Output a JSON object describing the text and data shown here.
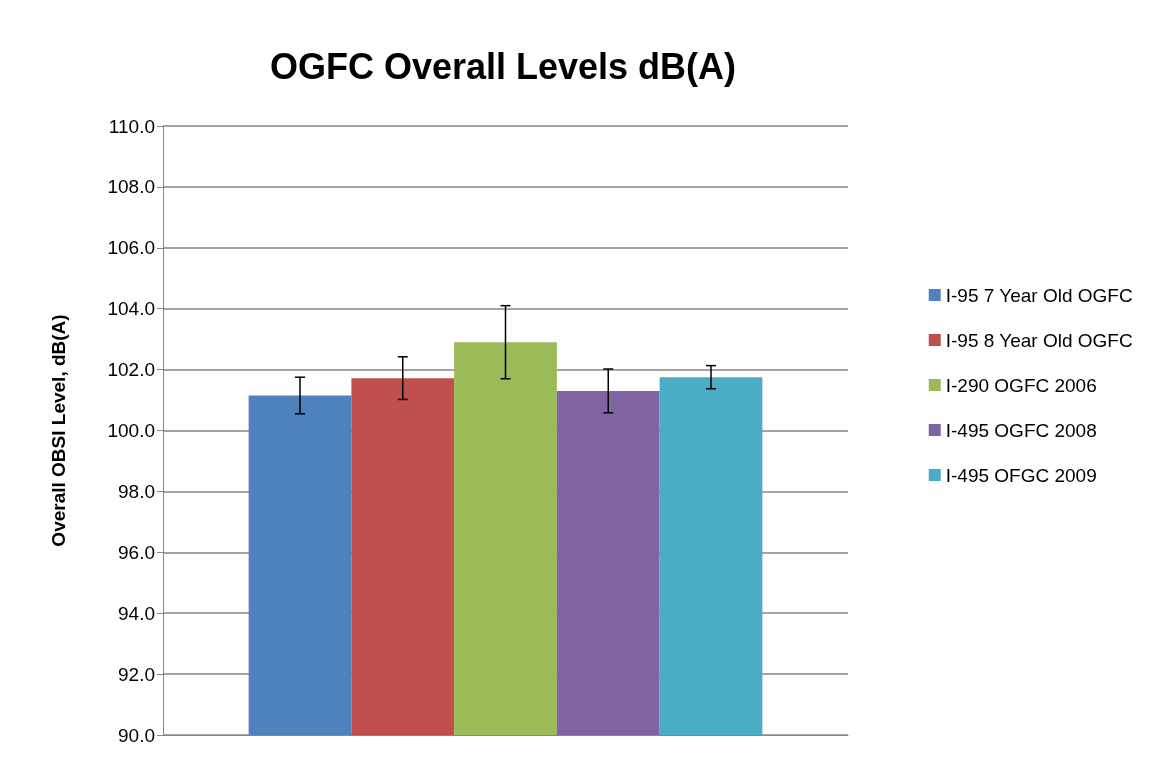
{
  "chart_data": {
    "type": "bar",
    "title": "OGFC Overall Levels dB(A)",
    "ylabel": "Overall OBSI Level, dB(A)",
    "categories": [
      null
    ],
    "series": [
      {
        "name": "I-95 7 Year Old OGFC",
        "color": "#4f81bd",
        "values": [
          101.15
        ],
        "errors": [
          0.6
        ]
      },
      {
        "name": "I-95 8 Year Old OGFC",
        "color": "#c0504d",
        "values": [
          101.72
        ],
        "errors": [
          0.7
        ]
      },
      {
        "name": "I-290 OGFC 2006",
        "color": "#9bbb59",
        "values": [
          102.9
        ],
        "errors": [
          1.2
        ]
      },
      {
        "name": "I-495 OGFC 2008",
        "color": "#8064a2",
        "values": [
          101.3
        ],
        "errors": [
          0.72
        ]
      },
      {
        "name": "I-495 OFGC 2009",
        "color": "#4bacc6",
        "values": [
          101.75
        ],
        "errors": [
          0.38
        ]
      }
    ],
    "ylim": [
      90,
      110
    ],
    "yticks": [
      {
        "value": 90,
        "label": "90.0"
      },
      {
        "value": 92,
        "label": "92.0"
      },
      {
        "value": 94,
        "label": "94.0"
      },
      {
        "value": 96,
        "label": "96.0"
      },
      {
        "value": 98,
        "label": "98.0"
      },
      {
        "value": 100,
        "label": "100.0"
      },
      {
        "value": 102,
        "label": "102.0"
      },
      {
        "value": 104,
        "label": "104.0"
      },
      {
        "value": 106,
        "label": "106.0"
      },
      {
        "value": 108,
        "label": "108.0"
      },
      {
        "value": 110,
        "label": "110.0"
      }
    ],
    "grid": "y",
    "legend": "right"
  }
}
